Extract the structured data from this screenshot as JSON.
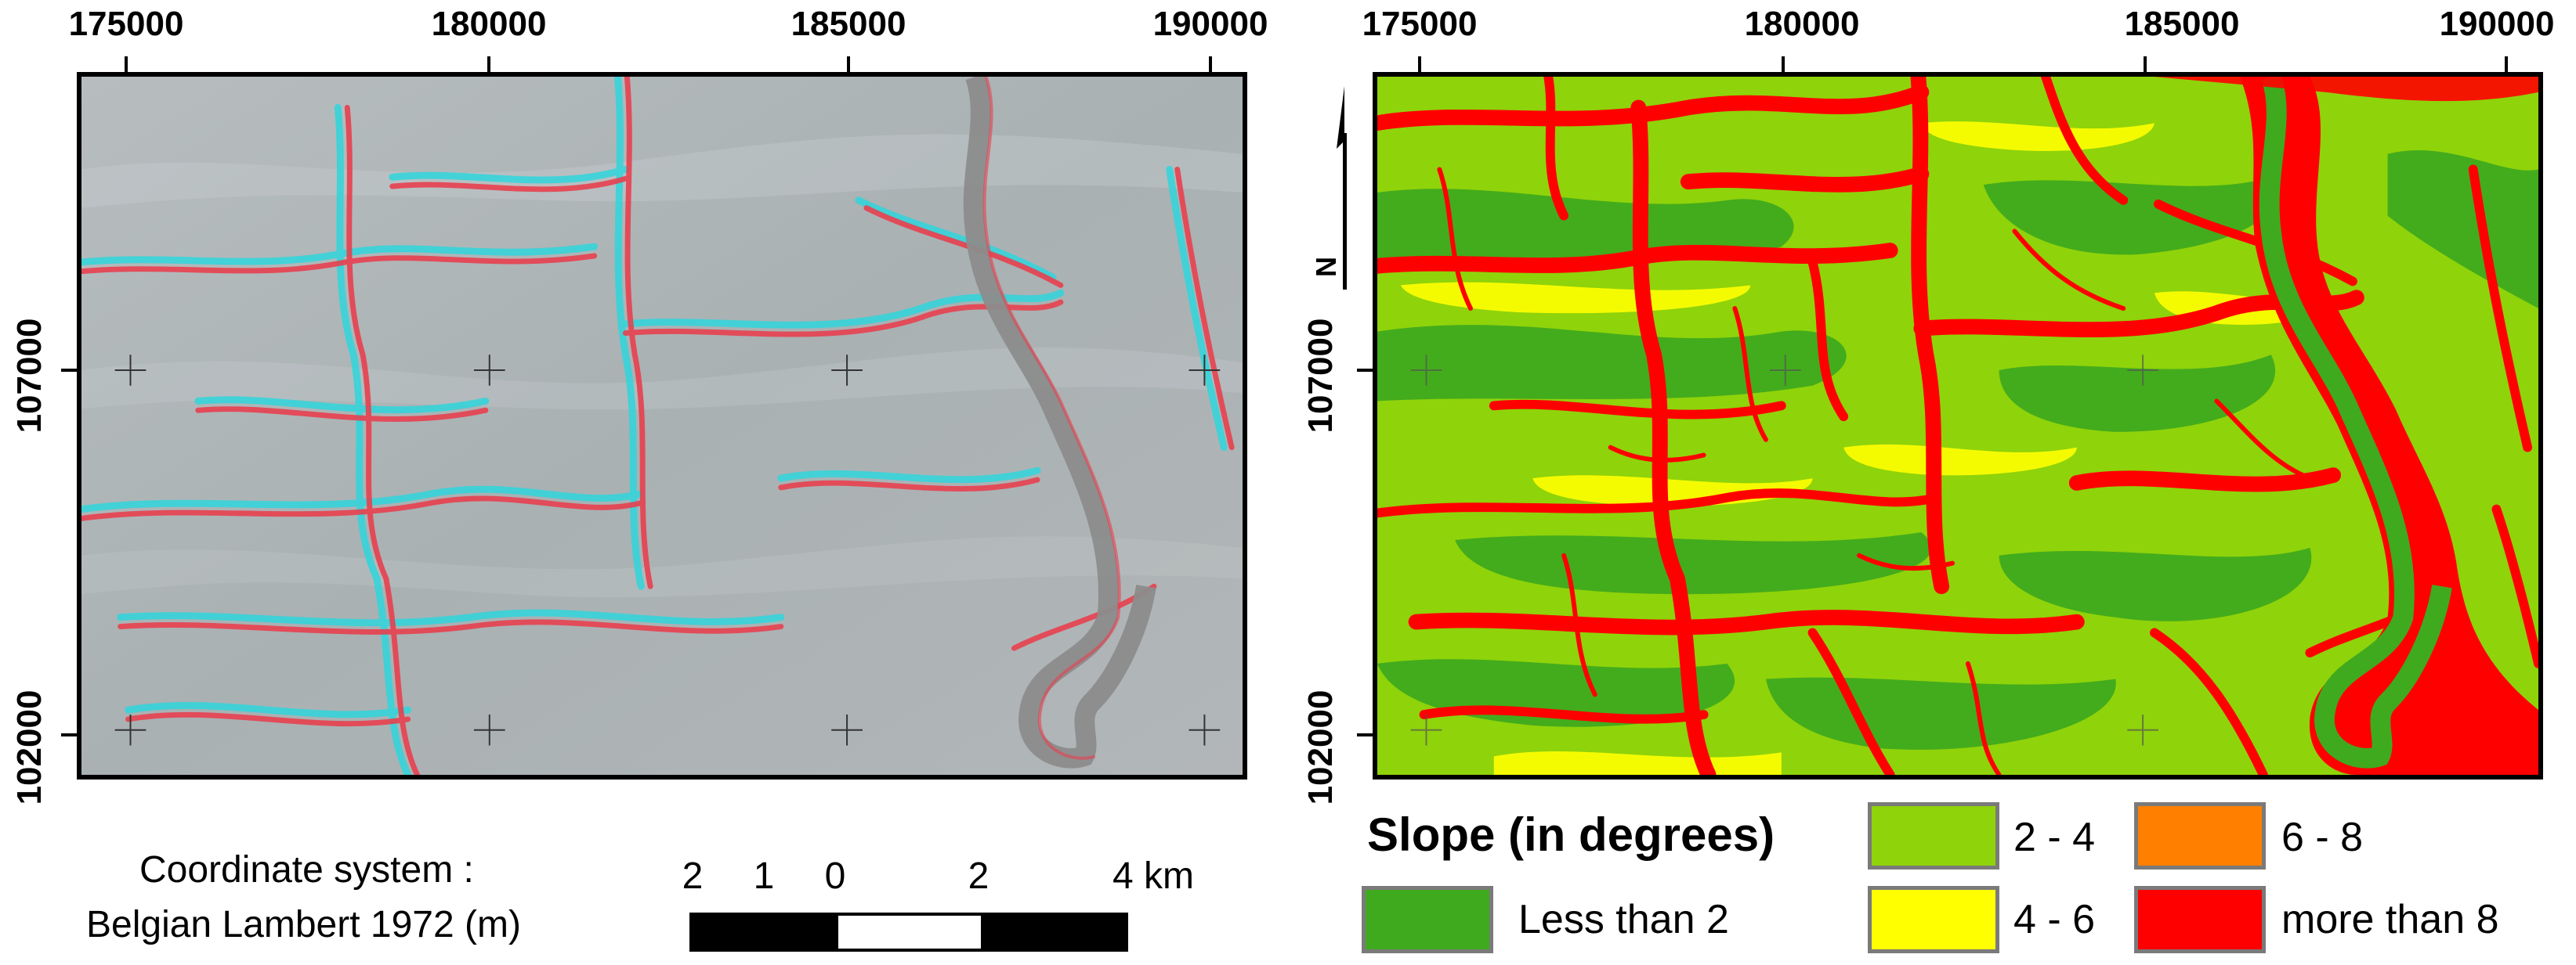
{
  "left_map": {
    "x_ticks": [
      "175000",
      "180000",
      "185000",
      "190000"
    ],
    "y_ticks": [
      "107000",
      "102000"
    ]
  },
  "right_map": {
    "x_ticks": [
      "175000",
      "180000",
      "185000",
      "190000"
    ],
    "y_ticks": [
      "107000",
      "102000"
    ],
    "north_label": "N"
  },
  "coordinate_system": {
    "line1": "Coordinate system :",
    "line2": "Belgian Lambert 1972 (m)"
  },
  "scale_bar": {
    "labels": [
      "2",
      "1",
      "0",
      "2",
      "4 km"
    ]
  },
  "legend": {
    "title": "Slope (in degrees)",
    "classes": [
      {
        "label": "Less than 2",
        "color": "#3faa1e"
      },
      {
        "label": "2 - 4",
        "color": "#8fd30a"
      },
      {
        "label": "4 - 6",
        "color": "#ffff00"
      },
      {
        "label": "6 - 8",
        "color": "#ff8000"
      },
      {
        "label": "more than 8",
        "color": "#ff0000"
      }
    ]
  },
  "colors": {
    "hillshade_base": "#a9b2b4",
    "anaglyph_red": "#e8404f",
    "anaglyph_cyan": "#2fd6dc",
    "river": "#8c8c8c"
  }
}
